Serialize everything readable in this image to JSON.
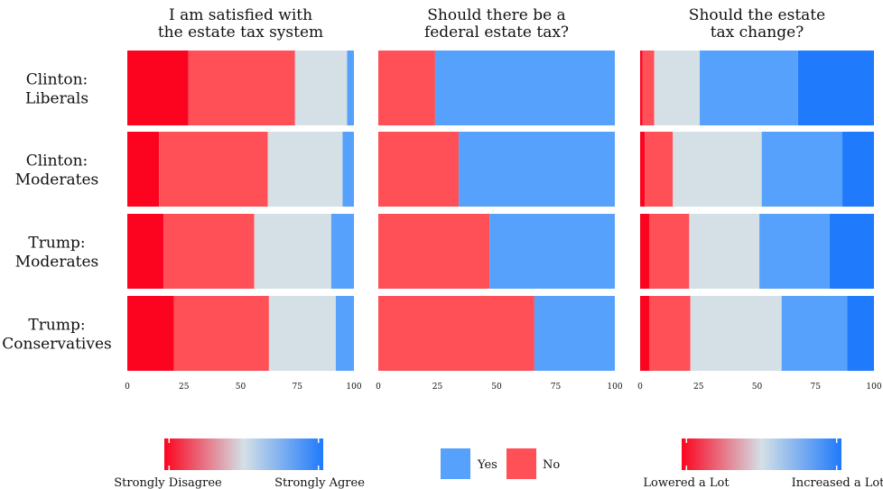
{
  "chart_data": {
    "type": "bar",
    "subtype": "stacked-horizontal-100",
    "rows": [
      "Clinton: Liberals",
      "Clinton: Moderates",
      "Trump: Moderates",
      "Trump: Conservatives"
    ],
    "row_label_lines": [
      [
        "Clinton:",
        "Liberals"
      ],
      [
        "Clinton:",
        "Moderates"
      ],
      [
        "Trump:",
        "Moderates"
      ],
      [
        "Trump:",
        "Conservatives"
      ]
    ],
    "xlim": [
      0,
      100
    ],
    "xticks": [
      "0",
      "25",
      "50",
      "75",
      "100"
    ],
    "panels": [
      {
        "title_lines": [
          "I am satisfied with",
          "the estate tax system"
        ],
        "segment_colors": [
          "#fc0420",
          "#ff4f57",
          "#d4e0e6",
          "#56a1fc"
        ],
        "rows": [
          [
            27,
            47,
            23,
            3
          ],
          [
            14,
            48,
            33,
            5
          ],
          [
            16,
            40,
            34,
            10
          ],
          [
            20.5,
            42,
            29.5,
            8
          ]
        ]
      },
      {
        "title_lines": [
          "Should there be a",
          "federal estate tax?"
        ],
        "segment_colors": [
          "#ff4f57",
          "#56a1fc"
        ],
        "rows": [
          [
            24,
            76
          ],
          [
            34,
            66
          ],
          [
            47,
            53
          ],
          [
            66,
            34
          ]
        ]
      },
      {
        "title_lines": [
          "Should the estate",
          "tax change?"
        ],
        "segment_colors": [
          "#fc0420",
          "#ff4f57",
          "#d4e0e6",
          "#56a1fc",
          "#1f7afc"
        ],
        "rows": [
          [
            1,
            5,
            19.5,
            42,
            32.5
          ],
          [
            2,
            12,
            38,
            34.5,
            13.5
          ],
          [
            4,
            17,
            30,
            30,
            19
          ],
          [
            4,
            17.5,
            39,
            28,
            11.5
          ]
        ]
      }
    ],
    "legends": {
      "left": {
        "low_label": "Strongly Disagree",
        "high_label": "Strongly Agree"
      },
      "center": {
        "items": [
          {
            "label": "Yes",
            "color": "#56a1fc"
          },
          {
            "label": "No",
            "color": "#ff4f57"
          }
        ]
      },
      "right": {
        "low_label": "Lowered a Lot",
        "high_label": "Increased a Lot"
      }
    },
    "gradient_colors": {
      "low": "#fc0420",
      "mid": "#d4e0e6",
      "high": "#1f7afc"
    },
    "grid": false
  }
}
